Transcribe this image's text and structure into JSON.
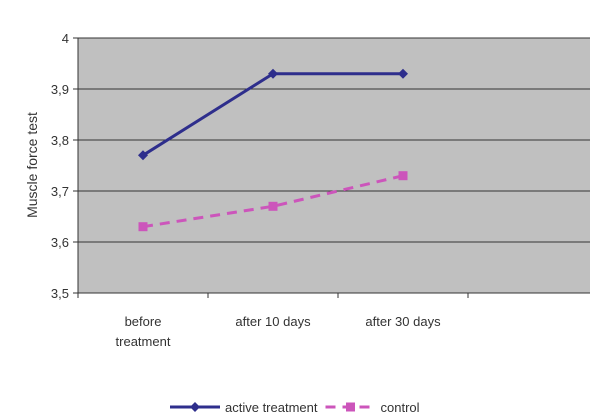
{
  "chart_data": {
    "type": "line",
    "title": "",
    "xlabel": "",
    "ylabel": "Muscle force test",
    "categories": [
      [
        "before",
        "treatment"
      ],
      [
        "after 10 days"
      ],
      [
        "after 30 days"
      ]
    ],
    "ylim": [
      3.5,
      4.0
    ],
    "yticks": [
      "3,5",
      "3,6",
      "3,7",
      "3,8",
      "3,9",
      "4"
    ],
    "grid": true,
    "plot_background": "#c0c0c0",
    "legend_position": "bottom",
    "series": [
      {
        "name": "active treatment",
        "values": [
          3.77,
          3.93,
          3.93
        ],
        "color": "#2e2e8c",
        "line_style": "solid",
        "marker": "diamond"
      },
      {
        "name": "control",
        "values": [
          3.63,
          3.67,
          3.73
        ],
        "color": "#cc55bb",
        "line_style": "dashed",
        "marker": "square"
      }
    ]
  }
}
